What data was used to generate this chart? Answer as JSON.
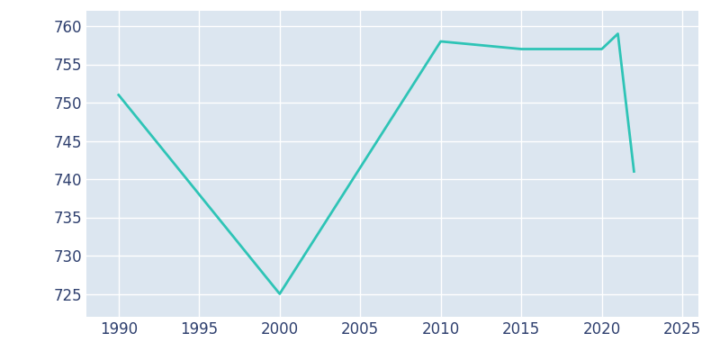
{
  "years": [
    1990,
    2000,
    2010,
    2015,
    2020,
    2021,
    2022
  ],
  "population": [
    751,
    725,
    758,
    757,
    757,
    759,
    741
  ],
  "line_color": "#2ec4b6",
  "plot_bg_color": "#dce6f0",
  "fig_bg_color": "#ffffff",
  "grid_color": "#ffffff",
  "text_color": "#2e3f6e",
  "xlim": [
    1988,
    2026
  ],
  "ylim": [
    722,
    762
  ],
  "yticks": [
    725,
    730,
    735,
    740,
    745,
    750,
    755,
    760
  ],
  "xticks": [
    1990,
    1995,
    2000,
    2005,
    2010,
    2015,
    2020,
    2025
  ],
  "linewidth": 2.0,
  "tick_fontsize": 12
}
